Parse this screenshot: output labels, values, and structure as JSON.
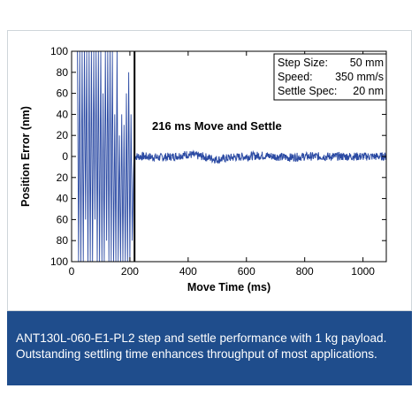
{
  "chart_data": {
    "type": "line",
    "xlabel": "Move Time (ms)",
    "ylabel": "Position Error (nm)",
    "xlim": [
      0,
      1080
    ],
    "ylim": [
      -100,
      100
    ],
    "x_ticks": [
      0,
      200,
      400,
      600,
      800,
      1000
    ],
    "x_tick_labels": [
      "0",
      "200",
      "400",
      "600",
      "800",
      "1000"
    ],
    "y_ticks": [
      100,
      80,
      60,
      40,
      20,
      0,
      -20,
      -40,
      -60,
      -80,
      -100
    ],
    "y_tick_labels": [
      "100",
      "80",
      "60",
      "40",
      "20",
      "0",
      "20",
      "40",
      "60",
      "80",
      "100"
    ],
    "grid": false,
    "annotation_box": {
      "line1_label": "Step Size:",
      "line1_value": "50 mm",
      "line2_label": "Speed:",
      "line2_value": "350 mm/s",
      "line3_label": "Settle Spec:",
      "line3_value": "20 nm"
    },
    "annotation": "216 ms Move and Settle",
    "settle_time_ms": 216,
    "series": [
      {
        "color": "#2b4aa3",
        "move_phase": {
          "range_ms": [
            20,
            215
          ],
          "x": [
            20,
            24,
            28,
            32,
            36,
            40,
            44,
            48,
            52,
            56,
            60,
            64,
            68,
            72,
            76,
            80,
            84,
            88,
            92,
            96,
            100,
            104,
            108,
            112,
            116,
            120,
            124,
            128,
            132,
            136,
            140,
            144,
            148,
            152,
            156,
            160,
            164,
            168,
            172,
            176,
            180,
            184,
            188,
            192,
            196,
            200,
            204,
            208,
            212,
            215
          ],
          "y": [
            100,
            -100,
            100,
            -100,
            100,
            -100,
            100,
            -60,
            100,
            -100,
            100,
            -100,
            100,
            -100,
            100,
            -60,
            100,
            -100,
            100,
            -100,
            100,
            -100,
            60,
            -100,
            100,
            -80,
            100,
            -100,
            100,
            -100,
            100,
            -100,
            40,
            -100,
            100,
            -100,
            20,
            -100,
            40,
            -100,
            30,
            -100,
            60,
            -100,
            80,
            -100,
            40,
            -80,
            -20,
            10
          ]
        },
        "settle_phase": {
          "range_ms": [
            216,
            1080
          ],
          "x": [
            216,
            250,
            300,
            350,
            400,
            450,
            500,
            550,
            600,
            650,
            700,
            750,
            800,
            850,
            900,
            950,
            1000,
            1050,
            1080
          ],
          "y": [
            0,
            0,
            -1,
            0,
            2,
            0,
            -3,
            -1,
            0,
            1,
            0,
            -1,
            0,
            0,
            0,
            0,
            0,
            0,
            0
          ],
          "noise_nm": 4
        }
      }
    ]
  },
  "caption": {
    "line1": "ANT130L-060-E1-PL2 step and settle performance with 1 kg payload.",
    "line2": "Outstanding settling time enhances throughput of most applications."
  }
}
